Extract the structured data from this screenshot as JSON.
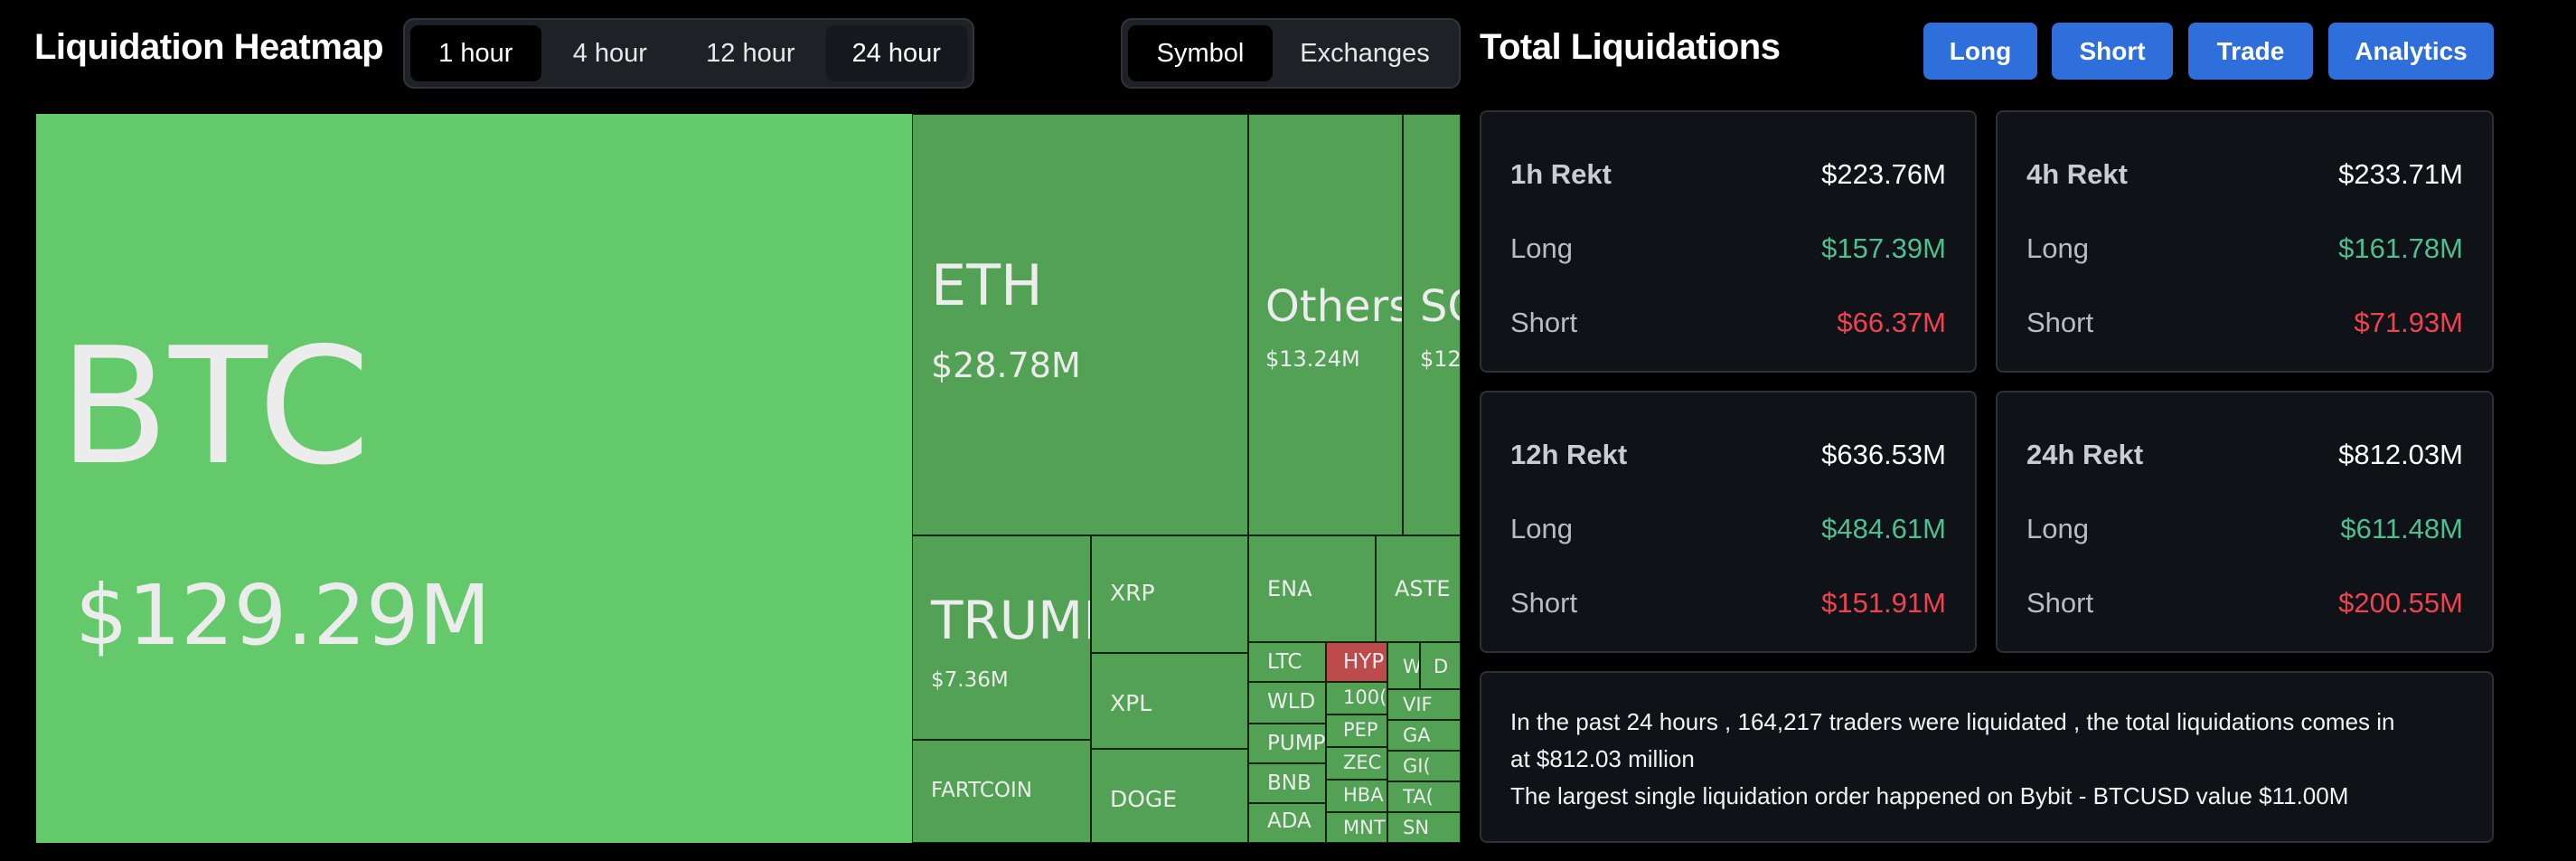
{
  "header": {
    "title": "Liquidation Heatmap",
    "time_tabs": [
      {
        "label": "1 hour",
        "active": true
      },
      {
        "label": "4 hour",
        "active": false
      },
      {
        "label": "12 hour",
        "active": false
      },
      {
        "label": "24 hour",
        "active": false
      }
    ],
    "view_tabs": [
      {
        "label": "Symbol",
        "active": true
      },
      {
        "label": "Exchanges",
        "active": false
      }
    ]
  },
  "heatmap": {
    "colors": {
      "dominant": "#64c96a",
      "positive": "#52a155",
      "negative": "#bd4b4b"
    },
    "tiles": [
      {
        "symbol": "BTC",
        "value": "$129.29M"
      },
      {
        "symbol": "ETH",
        "value": "$28.78M"
      },
      {
        "symbol": "Others",
        "value": "$13.24M"
      },
      {
        "symbol": "SC",
        "value": "$12."
      },
      {
        "symbol": "TRUMF",
        "value": "$7.36M"
      },
      {
        "symbol": "XRP",
        "value": ""
      },
      {
        "symbol": "XPL",
        "value": ""
      },
      {
        "symbol": "FARTCOIN",
        "value": ""
      },
      {
        "symbol": "DOGE",
        "value": ""
      },
      {
        "symbol": "ENA",
        "value": ""
      },
      {
        "symbol": "ASTE",
        "value": ""
      },
      {
        "symbol": "LTC",
        "value": ""
      },
      {
        "symbol": "HYP",
        "value": ""
      },
      {
        "symbol": "WLD",
        "value": ""
      },
      {
        "symbol": "100(",
        "value": ""
      },
      {
        "symbol": "PUMP",
        "value": ""
      },
      {
        "symbol": "PEP",
        "value": ""
      },
      {
        "symbol": "BNB",
        "value": ""
      },
      {
        "symbol": "ZEC",
        "value": ""
      },
      {
        "symbol": "ADA",
        "value": ""
      },
      {
        "symbol": "HBA",
        "value": ""
      },
      {
        "symbol": "MNT",
        "value": ""
      },
      {
        "symbol": "W",
        "value": ""
      },
      {
        "symbol": "D",
        "value": ""
      },
      {
        "symbol": "VIF",
        "value": ""
      },
      {
        "symbol": "GA",
        "value": ""
      },
      {
        "symbol": "GI(",
        "value": ""
      },
      {
        "symbol": "TA(",
        "value": ""
      },
      {
        "symbol": "SN",
        "value": ""
      }
    ]
  },
  "panel": {
    "title": "Total Liquidations",
    "buttons": [
      "Long",
      "Short",
      "Trade",
      "Analytics"
    ],
    "cards": [
      {
        "label": "1h Rekt",
        "total": "$223.76M",
        "long_label": "Long",
        "long": "$157.39M",
        "short_label": "Short",
        "short": "$66.37M"
      },
      {
        "label": "4h Rekt",
        "total": "$233.71M",
        "long_label": "Long",
        "long": "$161.78M",
        "short_label": "Short",
        "short": "$71.93M"
      },
      {
        "label": "12h Rekt",
        "total": "$636.53M",
        "long_label": "Long",
        "long": "$484.61M",
        "short_label": "Short",
        "short": "$151.91M"
      },
      {
        "label": "24h Rekt",
        "total": "$812.03M",
        "long_label": "Long",
        "long": "$611.48M",
        "short_label": "Short",
        "short": "$200.55M"
      }
    ],
    "summary": {
      "line1": "In the past 24 hours , 164,217 traders were liquidated , the total liquidations comes in",
      "line2": "at $812.03 million",
      "line3": "The largest single liquidation order happened on Bybit - BTCUSD value $11.00M"
    },
    "colors": {
      "long": "#4fbf8f",
      "short": "#f0434f",
      "button": "#2f6fdc"
    }
  }
}
